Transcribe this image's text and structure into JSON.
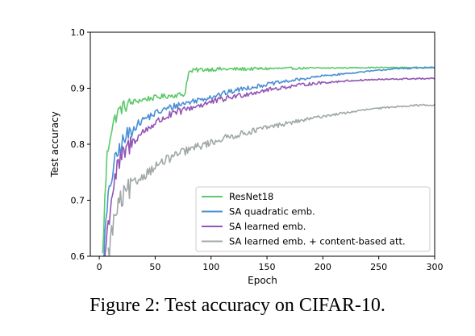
{
  "caption": "Figure 2: Test accuracy on CIFAR-10.",
  "chart_data": {
    "type": "line",
    "title": "",
    "xlabel": "Epoch",
    "ylabel": "Test accuracy",
    "xlim": [
      -8,
      300
    ],
    "ylim": [
      0.6,
      1.0
    ],
    "xticks": [
      0,
      50,
      100,
      150,
      200,
      250,
      300
    ],
    "yticks": [
      0.6,
      0.7,
      0.8,
      0.9,
      1.0
    ],
    "xtick_labels": [
      "0",
      "50",
      "100",
      "150",
      "200",
      "250",
      "300"
    ],
    "ytick_labels": [
      "0.6",
      "0.7",
      "0.8",
      "0.9",
      "1.0"
    ],
    "grid": false,
    "legend_position": "bottom-right",
    "series": [
      {
        "name": "ResNet18",
        "color": "#5cc96b",
        "x": [
          3,
          5,
          7,
          10,
          13,
          16,
          20,
          25,
          30,
          35,
          40,
          45,
          50,
          55,
          60,
          65,
          70,
          75,
          77,
          78,
          80,
          85,
          90,
          100,
          120,
          150,
          200,
          250,
          300
        ],
        "y": [
          0.6,
          0.7,
          0.78,
          0.82,
          0.84,
          0.855,
          0.865,
          0.87,
          0.875,
          0.878,
          0.88,
          0.882,
          0.883,
          0.885,
          0.886,
          0.887,
          0.888,
          0.889,
          0.89,
          0.91,
          0.928,
          0.932,
          0.933,
          0.934,
          0.934,
          0.935,
          0.936,
          0.937,
          0.937
        ]
      },
      {
        "name": "SA quadratic emb.",
        "color": "#4a90d4",
        "x": [
          4,
          6,
          8,
          10,
          13,
          16,
          20,
          25,
          30,
          40,
          50,
          60,
          70,
          80,
          90,
          100,
          110,
          120,
          130,
          140,
          150,
          160,
          170,
          180,
          190,
          200,
          220,
          240,
          260,
          280,
          300
        ],
        "y": [
          0.6,
          0.66,
          0.7,
          0.73,
          0.76,
          0.78,
          0.8,
          0.815,
          0.828,
          0.845,
          0.855,
          0.863,
          0.87,
          0.875,
          0.88,
          0.885,
          0.89,
          0.895,
          0.9,
          0.903,
          0.907,
          0.91,
          0.913,
          0.916,
          0.919,
          0.922,
          0.926,
          0.93,
          0.934,
          0.936,
          0.937
        ]
      },
      {
        "name": "SA learned emb.",
        "color": "#9355b5",
        "x": [
          5,
          7,
          10,
          13,
          16,
          20,
          25,
          30,
          40,
          50,
          60,
          70,
          80,
          90,
          100,
          110,
          120,
          130,
          140,
          150,
          160,
          170,
          180,
          190,
          200,
          220,
          240,
          260,
          280,
          300
        ],
        "y": [
          0.6,
          0.64,
          0.69,
          0.73,
          0.755,
          0.775,
          0.792,
          0.805,
          0.823,
          0.838,
          0.849,
          0.857,
          0.864,
          0.87,
          0.875,
          0.88,
          0.885,
          0.889,
          0.893,
          0.897,
          0.9,
          0.903,
          0.906,
          0.908,
          0.91,
          0.913,
          0.915,
          0.916,
          0.917,
          0.917
        ]
      },
      {
        "name": "SA learned emb. + content-based att.",
        "color": "#a0a8a8",
        "x": [
          8,
          10,
          13,
          16,
          20,
          25,
          30,
          40,
          50,
          60,
          70,
          80,
          90,
          100,
          110,
          120,
          130,
          140,
          150,
          160,
          170,
          180,
          190,
          200,
          210,
          220,
          230,
          240,
          250,
          260,
          270,
          280,
          290,
          300
        ],
        "y": [
          0.6,
          0.63,
          0.66,
          0.685,
          0.7,
          0.715,
          0.728,
          0.745,
          0.76,
          0.772,
          0.782,
          0.79,
          0.797,
          0.803,
          0.81,
          0.815,
          0.82,
          0.825,
          0.83,
          0.834,
          0.838,
          0.842,
          0.846,
          0.85,
          0.853,
          0.856,
          0.859,
          0.862,
          0.864,
          0.866,
          0.868,
          0.869,
          0.87,
          0.87
        ]
      }
    ]
  }
}
